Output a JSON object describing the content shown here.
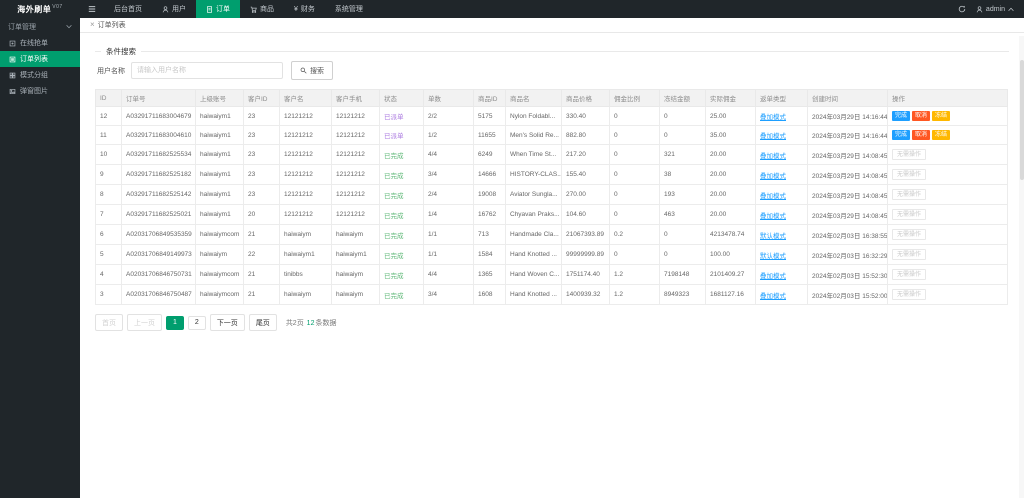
{
  "colors": {
    "accent": "#009e6e",
    "header_bg": "#20262a",
    "sidebar_bg": "#20262a",
    "blue": "#1E9FFF",
    "red": "#FF5722",
    "yellow": "#FFB800",
    "purple": "#ab7ae0",
    "green": "#5FB878"
  },
  "topbar": {
    "logo": "海外刷单",
    "version": "V07",
    "menu": [
      {
        "name": "home",
        "label": "后台首页",
        "icon": null,
        "active": false
      },
      {
        "name": "user",
        "label": "用户",
        "icon": "person",
        "active": false
      },
      {
        "name": "order",
        "label": "订单",
        "icon": "doc",
        "active": true
      },
      {
        "name": "goods",
        "label": "商品",
        "icon": "cart",
        "active": false
      },
      {
        "name": "finance",
        "label": "财务",
        "icon": "yen",
        "active": false
      },
      {
        "name": "system",
        "label": "系统管理",
        "icon": null,
        "active": false
      }
    ],
    "user": "admin"
  },
  "sidebar": {
    "group": "订单管理",
    "items": [
      {
        "name": "online-grab",
        "label": "在线抢单",
        "icon": "grab",
        "active": false
      },
      {
        "name": "order-list",
        "label": "订单列表",
        "icon": "list",
        "active": true
      },
      {
        "name": "mode-group",
        "label": "模式分组",
        "icon": "grid",
        "active": false
      },
      {
        "name": "popup-image",
        "label": "弹窗图片",
        "icon": "image",
        "active": false
      }
    ]
  },
  "tabbar": {
    "active_tab": "订单列表"
  },
  "search": {
    "legend": "条件搜索",
    "label": "用户名称",
    "placeholder": "请输入用户名称",
    "button": "搜索"
  },
  "actions": {
    "complete": "完成",
    "cancel": "取消",
    "freeze": "冻结",
    "none": "无需操作"
  },
  "table": {
    "columns": [
      "ID",
      "订单号",
      "上级账号",
      "客户ID",
      "客户名",
      "客户手机",
      "状态",
      "单数",
      "商品ID",
      "商品名",
      "商品价格",
      "佣金比例",
      "冻结金额",
      "实际佣金",
      "返单类型",
      "创建时间",
      "操作"
    ],
    "rows": [
      {
        "id": "12",
        "order_no": "A03291711683004679",
        "parent": "haiwaiym1",
        "cust_id": "23",
        "cust_name": "12121212",
        "cust_phone": "12121212",
        "status": "已派单",
        "status_type": "dispatched",
        "count": "2/2",
        "prod_id": "5175",
        "prod_name": "Nylon Foldabl...",
        "price": "330.40",
        "ratio": "0",
        "frozen": "0",
        "commission": "25.00",
        "mode": "叠加模式",
        "created": "2024年03月29日 14:16:44",
        "actions": "full"
      },
      {
        "id": "11",
        "order_no": "A03291711683004610",
        "parent": "haiwaiym1",
        "cust_id": "23",
        "cust_name": "12121212",
        "cust_phone": "12121212",
        "status": "已派单",
        "status_type": "dispatched",
        "count": "1/2",
        "prod_id": "11655",
        "prod_name": "Men's Solid Re...",
        "price": "882.80",
        "ratio": "0",
        "frozen": "0",
        "commission": "35.00",
        "mode": "叠加模式",
        "created": "2024年03月29日 14:16:44",
        "actions": "full"
      },
      {
        "id": "10",
        "order_no": "A03291711682525534",
        "parent": "haiwaiym1",
        "cust_id": "23",
        "cust_name": "12121212",
        "cust_phone": "12121212",
        "status": "已完成",
        "status_type": "done",
        "count": "4/4",
        "prod_id": "6249",
        "prod_name": "When Time St...",
        "price": "217.20",
        "ratio": "0",
        "frozen": "321",
        "commission": "20.00",
        "mode": "叠加模式",
        "created": "2024年03月29日 14:08:45",
        "actions": "none"
      },
      {
        "id": "9",
        "order_no": "A03291711682525182",
        "parent": "haiwaiym1",
        "cust_id": "23",
        "cust_name": "12121212",
        "cust_phone": "12121212",
        "status": "已完成",
        "status_type": "done",
        "count": "3/4",
        "prod_id": "14666",
        "prod_name": "HISTORY-CLAS...",
        "price": "155.40",
        "ratio": "0",
        "frozen": "38",
        "commission": "20.00",
        "mode": "叠加模式",
        "created": "2024年03月29日 14:08:45",
        "actions": "none"
      },
      {
        "id": "8",
        "order_no": "A03291711682525142",
        "parent": "haiwaiym1",
        "cust_id": "23",
        "cust_name": "12121212",
        "cust_phone": "12121212",
        "status": "已完成",
        "status_type": "done",
        "count": "2/4",
        "prod_id": "19008",
        "prod_name": "Aviator Sungla...",
        "price": "270.00",
        "ratio": "0",
        "frozen": "193",
        "commission": "20.00",
        "mode": "叠加模式",
        "created": "2024年03月29日 14:08:45",
        "actions": "none"
      },
      {
        "id": "7",
        "order_no": "A03291711682525021",
        "parent": "haiwaiym1",
        "cust_id": "20",
        "cust_name": "12121212",
        "cust_phone": "12121212",
        "status": "已完成",
        "status_type": "done",
        "count": "1/4",
        "prod_id": "16762",
        "prod_name": "Chyavan Praks...",
        "price": "104.60",
        "ratio": "0",
        "frozen": "463",
        "commission": "20.00",
        "mode": "叠加模式",
        "created": "2024年03月29日 14:08:45",
        "actions": "none"
      },
      {
        "id": "6",
        "order_no": "A02031706849535359",
        "parent": "haiwaiymcom",
        "cust_id": "21",
        "cust_name": "haiwaiym",
        "cust_phone": "haiwaiym",
        "status": "已完成",
        "status_type": "done",
        "count": "1/1",
        "prod_id": "713",
        "prod_name": "Handmade Cla...",
        "price": "21067393.89",
        "ratio": "0.2",
        "frozen": "0",
        "commission": "4213478.74",
        "mode": "默认模式",
        "created": "2024年02月03日 16:38:55",
        "actions": "none"
      },
      {
        "id": "5",
        "order_no": "A02031706849149973",
        "parent": "haiwaiym",
        "cust_id": "22",
        "cust_name": "haiwaiym1",
        "cust_phone": "haiwaiym1",
        "status": "已完成",
        "status_type": "done",
        "count": "1/1",
        "prod_id": "1584",
        "prod_name": "Hand Knotted ...",
        "price": "99999999.89",
        "ratio": "0",
        "frozen": "0",
        "commission": "100.00",
        "mode": "默认模式",
        "created": "2024年02月03日 16:32:29",
        "actions": "none"
      },
      {
        "id": "4",
        "order_no": "A02031706846750731",
        "parent": "haiwaiymcom",
        "cust_id": "21",
        "cust_name": "tinibbs",
        "cust_phone": "haiwaiym",
        "status": "已完成",
        "status_type": "done",
        "count": "4/4",
        "prod_id": "1365",
        "prod_name": "Hand Woven C...",
        "price": "1751174.40",
        "ratio": "1.2",
        "frozen": "7198148",
        "commission": "2101409.27",
        "mode": "叠加模式",
        "created": "2024年02月03日 15:52:30",
        "actions": "none"
      },
      {
        "id": "3",
        "order_no": "A02031706846750487",
        "parent": "haiwaiymcom",
        "cust_id": "21",
        "cust_name": "haiwaiym",
        "cust_phone": "haiwaiym",
        "status": "已完成",
        "status_type": "done",
        "count": "3/4",
        "prod_id": "1608",
        "prod_name": "Hand Knotted ...",
        "price": "1400939.32",
        "ratio": "1.2",
        "frozen": "8949323",
        "commission": "1681127.16",
        "mode": "叠加模式",
        "created": "2024年02月03日 15:52:00",
        "actions": "none"
      }
    ]
  },
  "pagination": {
    "first": "首页",
    "prev": "上一页",
    "pages": [
      {
        "label": "1",
        "active": true
      },
      {
        "label": "2",
        "active": false
      }
    ],
    "next": "下一页",
    "last": "尾页",
    "total_pages": "共2页",
    "count": "12",
    "count_suffix": "条数据"
  }
}
